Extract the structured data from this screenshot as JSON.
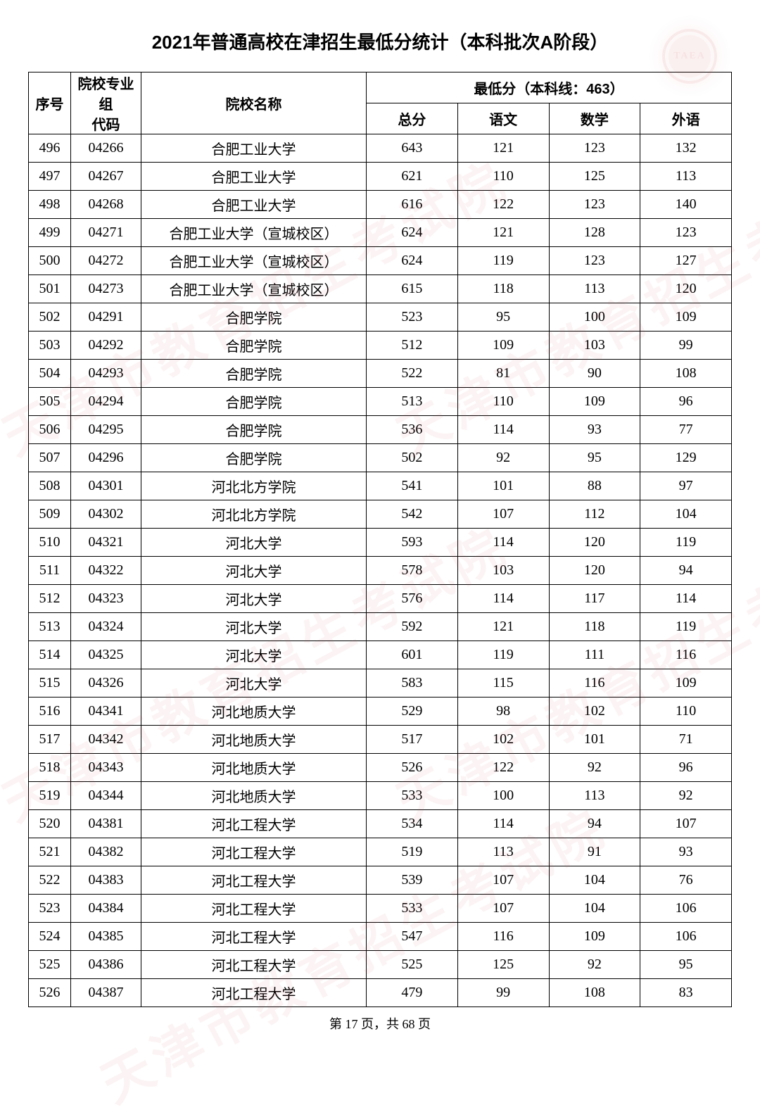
{
  "title": "2021年普通高校在津招生最低分统计（本科批次A阶段）",
  "header": {
    "seq": "序号",
    "code_line1": "院校专业组",
    "code_line2": "代码",
    "name": "院校名称",
    "score_group": "最低分（本科线：463）",
    "total": "总分",
    "chinese": "语文",
    "math": "数学",
    "foreign": "外语"
  },
  "watermark_text": "天津市教育招生考试院",
  "watermark_logo_text": "TAEA",
  "rows": [
    {
      "seq": "496",
      "code": "04266",
      "name": "合肥工业大学",
      "total": "643",
      "chinese": "121",
      "math": "123",
      "foreign": "132"
    },
    {
      "seq": "497",
      "code": "04267",
      "name": "合肥工业大学",
      "total": "621",
      "chinese": "110",
      "math": "125",
      "foreign": "113"
    },
    {
      "seq": "498",
      "code": "04268",
      "name": "合肥工业大学",
      "total": "616",
      "chinese": "122",
      "math": "123",
      "foreign": "140"
    },
    {
      "seq": "499",
      "code": "04271",
      "name": "合肥工业大学（宣城校区）",
      "total": "624",
      "chinese": "121",
      "math": "128",
      "foreign": "123"
    },
    {
      "seq": "500",
      "code": "04272",
      "name": "合肥工业大学（宣城校区）",
      "total": "624",
      "chinese": "119",
      "math": "123",
      "foreign": "127"
    },
    {
      "seq": "501",
      "code": "04273",
      "name": "合肥工业大学（宣城校区）",
      "total": "615",
      "chinese": "118",
      "math": "113",
      "foreign": "120"
    },
    {
      "seq": "502",
      "code": "04291",
      "name": "合肥学院",
      "total": "523",
      "chinese": "95",
      "math": "100",
      "foreign": "109"
    },
    {
      "seq": "503",
      "code": "04292",
      "name": "合肥学院",
      "total": "512",
      "chinese": "109",
      "math": "103",
      "foreign": "99"
    },
    {
      "seq": "504",
      "code": "04293",
      "name": "合肥学院",
      "total": "522",
      "chinese": "81",
      "math": "90",
      "foreign": "108"
    },
    {
      "seq": "505",
      "code": "04294",
      "name": "合肥学院",
      "total": "513",
      "chinese": "110",
      "math": "109",
      "foreign": "96"
    },
    {
      "seq": "506",
      "code": "04295",
      "name": "合肥学院",
      "total": "536",
      "chinese": "114",
      "math": "93",
      "foreign": "77"
    },
    {
      "seq": "507",
      "code": "04296",
      "name": "合肥学院",
      "total": "502",
      "chinese": "92",
      "math": "95",
      "foreign": "129"
    },
    {
      "seq": "508",
      "code": "04301",
      "name": "河北北方学院",
      "total": "541",
      "chinese": "101",
      "math": "88",
      "foreign": "97"
    },
    {
      "seq": "509",
      "code": "04302",
      "name": "河北北方学院",
      "total": "542",
      "chinese": "107",
      "math": "112",
      "foreign": "104"
    },
    {
      "seq": "510",
      "code": "04321",
      "name": "河北大学",
      "total": "593",
      "chinese": "114",
      "math": "120",
      "foreign": "119"
    },
    {
      "seq": "511",
      "code": "04322",
      "name": "河北大学",
      "total": "578",
      "chinese": "103",
      "math": "120",
      "foreign": "94"
    },
    {
      "seq": "512",
      "code": "04323",
      "name": "河北大学",
      "total": "576",
      "chinese": "114",
      "math": "117",
      "foreign": "114"
    },
    {
      "seq": "513",
      "code": "04324",
      "name": "河北大学",
      "total": "592",
      "chinese": "121",
      "math": "118",
      "foreign": "119"
    },
    {
      "seq": "514",
      "code": "04325",
      "name": "河北大学",
      "total": "601",
      "chinese": "119",
      "math": "111",
      "foreign": "116"
    },
    {
      "seq": "515",
      "code": "04326",
      "name": "河北大学",
      "total": "583",
      "chinese": "115",
      "math": "116",
      "foreign": "109"
    },
    {
      "seq": "516",
      "code": "04341",
      "name": "河北地质大学",
      "total": "529",
      "chinese": "98",
      "math": "102",
      "foreign": "110"
    },
    {
      "seq": "517",
      "code": "04342",
      "name": "河北地质大学",
      "total": "517",
      "chinese": "102",
      "math": "101",
      "foreign": "71"
    },
    {
      "seq": "518",
      "code": "04343",
      "name": "河北地质大学",
      "total": "526",
      "chinese": "122",
      "math": "92",
      "foreign": "96"
    },
    {
      "seq": "519",
      "code": "04344",
      "name": "河北地质大学",
      "total": "533",
      "chinese": "100",
      "math": "113",
      "foreign": "92"
    },
    {
      "seq": "520",
      "code": "04381",
      "name": "河北工程大学",
      "total": "534",
      "chinese": "114",
      "math": "94",
      "foreign": "107"
    },
    {
      "seq": "521",
      "code": "04382",
      "name": "河北工程大学",
      "total": "519",
      "chinese": "113",
      "math": "91",
      "foreign": "93"
    },
    {
      "seq": "522",
      "code": "04383",
      "name": "河北工程大学",
      "total": "539",
      "chinese": "107",
      "math": "104",
      "foreign": "76"
    },
    {
      "seq": "523",
      "code": "04384",
      "name": "河北工程大学",
      "total": "533",
      "chinese": "107",
      "math": "104",
      "foreign": "106"
    },
    {
      "seq": "524",
      "code": "04385",
      "name": "河北工程大学",
      "total": "547",
      "chinese": "116",
      "math": "109",
      "foreign": "106"
    },
    {
      "seq": "525",
      "code": "04386",
      "name": "河北工程大学",
      "total": "525",
      "chinese": "125",
      "math": "92",
      "foreign": "95"
    },
    {
      "seq": "526",
      "code": "04387",
      "name": "河北工程大学",
      "total": "479",
      "chinese": "99",
      "math": "108",
      "foreign": "83"
    }
  ],
  "footer": {
    "prefix": "第 ",
    "page": "17",
    "middle": " 页，共 ",
    "total": "68",
    "suffix": " 页"
  }
}
